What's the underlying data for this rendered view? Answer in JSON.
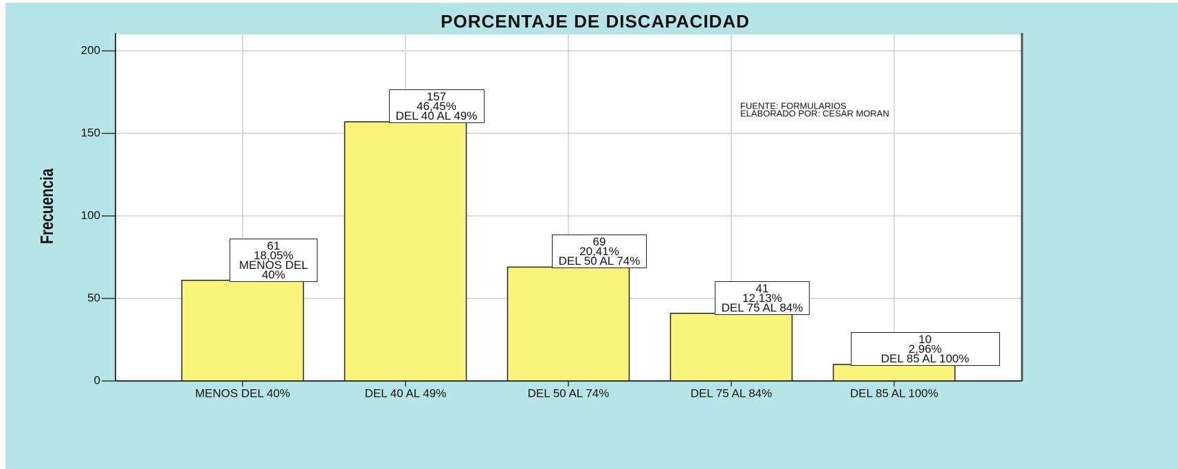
{
  "chart_data": {
    "type": "bar",
    "title": "PORCENTAJE DE DISCAPACIDAD",
    "y_label": "Frecuencia",
    "categories": [
      "MENOS DEL 40%",
      "DEL 40 AL 49%",
      "DEL 50 AL 74%",
      "DEL 75 AL 84%",
      "DEL 85 AL 100%"
    ],
    "values": [
      61,
      157,
      69,
      41,
      10
    ],
    "percent_labels": [
      "18,05%",
      "46,45%",
      "20,41%",
      "12,13%",
      "2,96%"
    ],
    "color": "#f8f57a",
    "ylim": [
      0,
      210
    ],
    "yticks": [
      0,
      50,
      100,
      150,
      200
    ],
    "grid": true,
    "notes": [
      "FUENTE: FORMULARIOS",
      "ELABORADO POR: CESAR MORAN"
    ]
  }
}
